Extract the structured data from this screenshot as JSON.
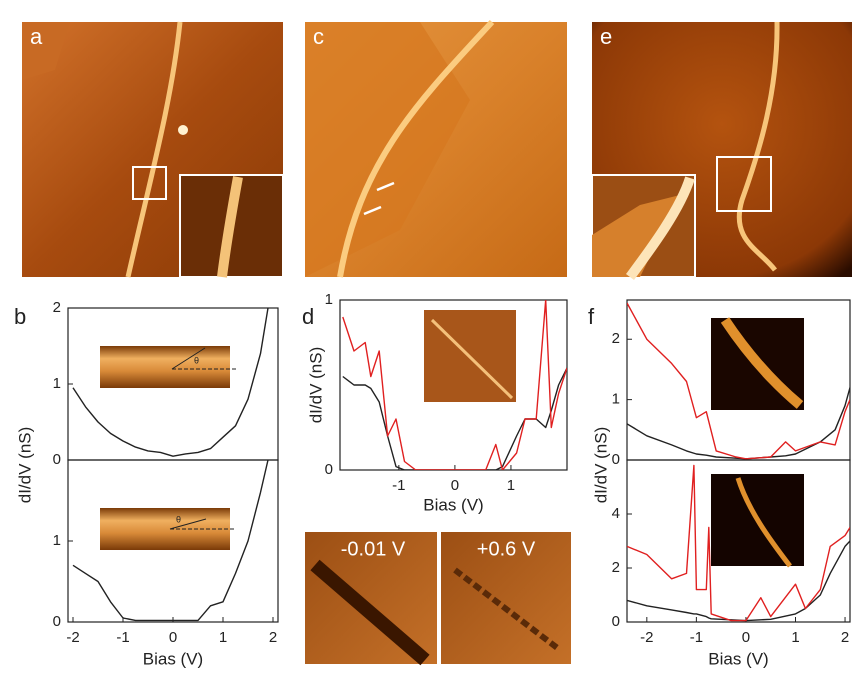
{
  "figure": {
    "panel_labels": [
      "a",
      "c",
      "e",
      "b",
      "d",
      "f"
    ],
    "map_labels": [
      "-0.01 V",
      "+0.6 V"
    ],
    "angle_labels": [
      "θ",
      "θ"
    ]
  },
  "chart_data": [
    {
      "type": "line",
      "ylabel": "dI/dV (nS)",
      "xlim": [
        -2.1,
        2.1
      ],
      "ylim": [
        0,
        2
      ],
      "yticks": [
        0,
        1,
        2
      ],
      "x": [
        -2,
        -1.75,
        -1.5,
        -1.25,
        -1,
        -0.75,
        -0.5,
        -0.25,
        0,
        0.25,
        0.5,
        0.75,
        1,
        1.25,
        1.5,
        1.75,
        1.9
      ],
      "series": [
        {
          "color": "#222222",
          "values": [
            0.95,
            0.7,
            0.5,
            0.35,
            0.25,
            0.17,
            0.12,
            0.1,
            0.05,
            0.08,
            0.1,
            0.15,
            0.3,
            0.45,
            0.8,
            1.4,
            2.0
          ]
        }
      ]
    },
    {
      "type": "line",
      "xlabel": "Bias (V)",
      "xlim": [
        -2.1,
        2.1
      ],
      "ylim": [
        0,
        2
      ],
      "yticks": [
        0,
        1
      ],
      "xticks": [
        -2,
        -1,
        0,
        1,
        2
      ],
      "x": [
        -2,
        -1.75,
        -1.5,
        -1.25,
        -1,
        -0.75,
        -0.5,
        -0.25,
        0,
        0.25,
        0.5,
        0.75,
        1,
        1.25,
        1.5,
        1.75,
        1.9
      ],
      "series": [
        {
          "color": "#222222",
          "values": [
            0.7,
            0.6,
            0.5,
            0.25,
            0.05,
            0.02,
            0.02,
            0.02,
            0.02,
            0.02,
            0.02,
            0.2,
            0.25,
            0.6,
            1.0,
            1.6,
            2.0
          ]
        }
      ]
    },
    {
      "type": "line",
      "xlabel": "Bias (V)",
      "ylabel": "dI/dV (nS)",
      "xlim": [
        -2.05,
        2.0
      ],
      "ylim": [
        0,
        1
      ],
      "yticks": [
        0,
        1
      ],
      "xticks": [
        -1,
        0,
        1
      ],
      "x": [
        -2,
        -1.8,
        -1.6,
        -1.5,
        -1.35,
        -1.2,
        -1.05,
        -0.9,
        -0.7,
        0,
        0.55,
        0.73,
        0.85,
        1.1,
        1.25,
        1.45,
        1.62,
        1.72,
        1.85,
        2.0
      ],
      "series": [
        {
          "color": "#222222",
          "values": [
            0.55,
            0.5,
            0.5,
            0.48,
            0.4,
            0.2,
            0.02,
            0,
            0,
            0,
            0,
            0,
            0.02,
            0.2,
            0.3,
            0.3,
            0.25,
            0.35,
            0.5,
            0.6
          ]
        },
        {
          "color": "#e02020",
          "values": [
            0.9,
            0.7,
            0.75,
            0.55,
            0.7,
            0.2,
            0.3,
            0.05,
            0,
            0,
            0,
            0.15,
            0,
            0.1,
            0.3,
            0.3,
            1.0,
            0.25,
            0.45,
            0.6
          ]
        }
      ]
    },
    {
      "type": "line",
      "ylim": [
        0,
        2.65
      ],
      "xlim": [
        -2.4,
        2.1
      ],
      "yticks": [
        0,
        1,
        2
      ],
      "x": [
        -2.4,
        -2,
        -1.5,
        -1.2,
        -1,
        -0.8,
        -0.6,
        -0.2,
        0,
        0.5,
        0.8,
        1,
        1.5,
        1.8,
        2,
        2.1
      ],
      "series": [
        {
          "color": "#222222",
          "values": [
            0.6,
            0.4,
            0.25,
            0.15,
            0.1,
            0.08,
            0.05,
            0.03,
            0.02,
            0.05,
            0.07,
            0.1,
            0.3,
            0.5,
            0.9,
            1.2
          ]
        },
        {
          "color": "#e02020",
          "values": [
            2.6,
            2.0,
            1.6,
            1.3,
            0.7,
            0.8,
            0.15,
            0.05,
            0.02,
            0.05,
            0.3,
            0.15,
            0.3,
            0.25,
            0.8,
            1.0
          ]
        }
      ]
    },
    {
      "type": "line",
      "xlabel": "Bias (V)",
      "ylabel": "dI/dV (nS)",
      "xlim": [
        -2.4,
        2.1
      ],
      "ylim": [
        0,
        6
      ],
      "yticks": [
        0,
        2,
        4
      ],
      "xticks": [
        -2,
        -1,
        0,
        1,
        2
      ],
      "x": [
        -2.4,
        -2,
        -1.5,
        -1.2,
        -1.05,
        -1,
        -0.8,
        -0.75,
        -0.7,
        -0.3,
        0,
        0.3,
        0.5,
        1,
        1.2,
        1.5,
        1.7,
        2,
        2.1
      ],
      "series": [
        {
          "color": "#222222",
          "values": [
            0.8,
            0.6,
            0.45,
            0.35,
            0.3,
            0.3,
            0.2,
            0.15,
            0.12,
            0.08,
            0.05,
            0.08,
            0.1,
            0.3,
            0.5,
            1.0,
            1.8,
            2.8,
            3.0
          ]
        },
        {
          "color": "#e02020",
          "values": [
            2.8,
            2.5,
            1.6,
            1.8,
            5.8,
            1.2,
            1.2,
            3.5,
            0.3,
            0.05,
            0.05,
            0.9,
            0.2,
            1.4,
            0.5,
            1.2,
            2.8,
            3.2,
            3.5
          ]
        }
      ]
    }
  ]
}
